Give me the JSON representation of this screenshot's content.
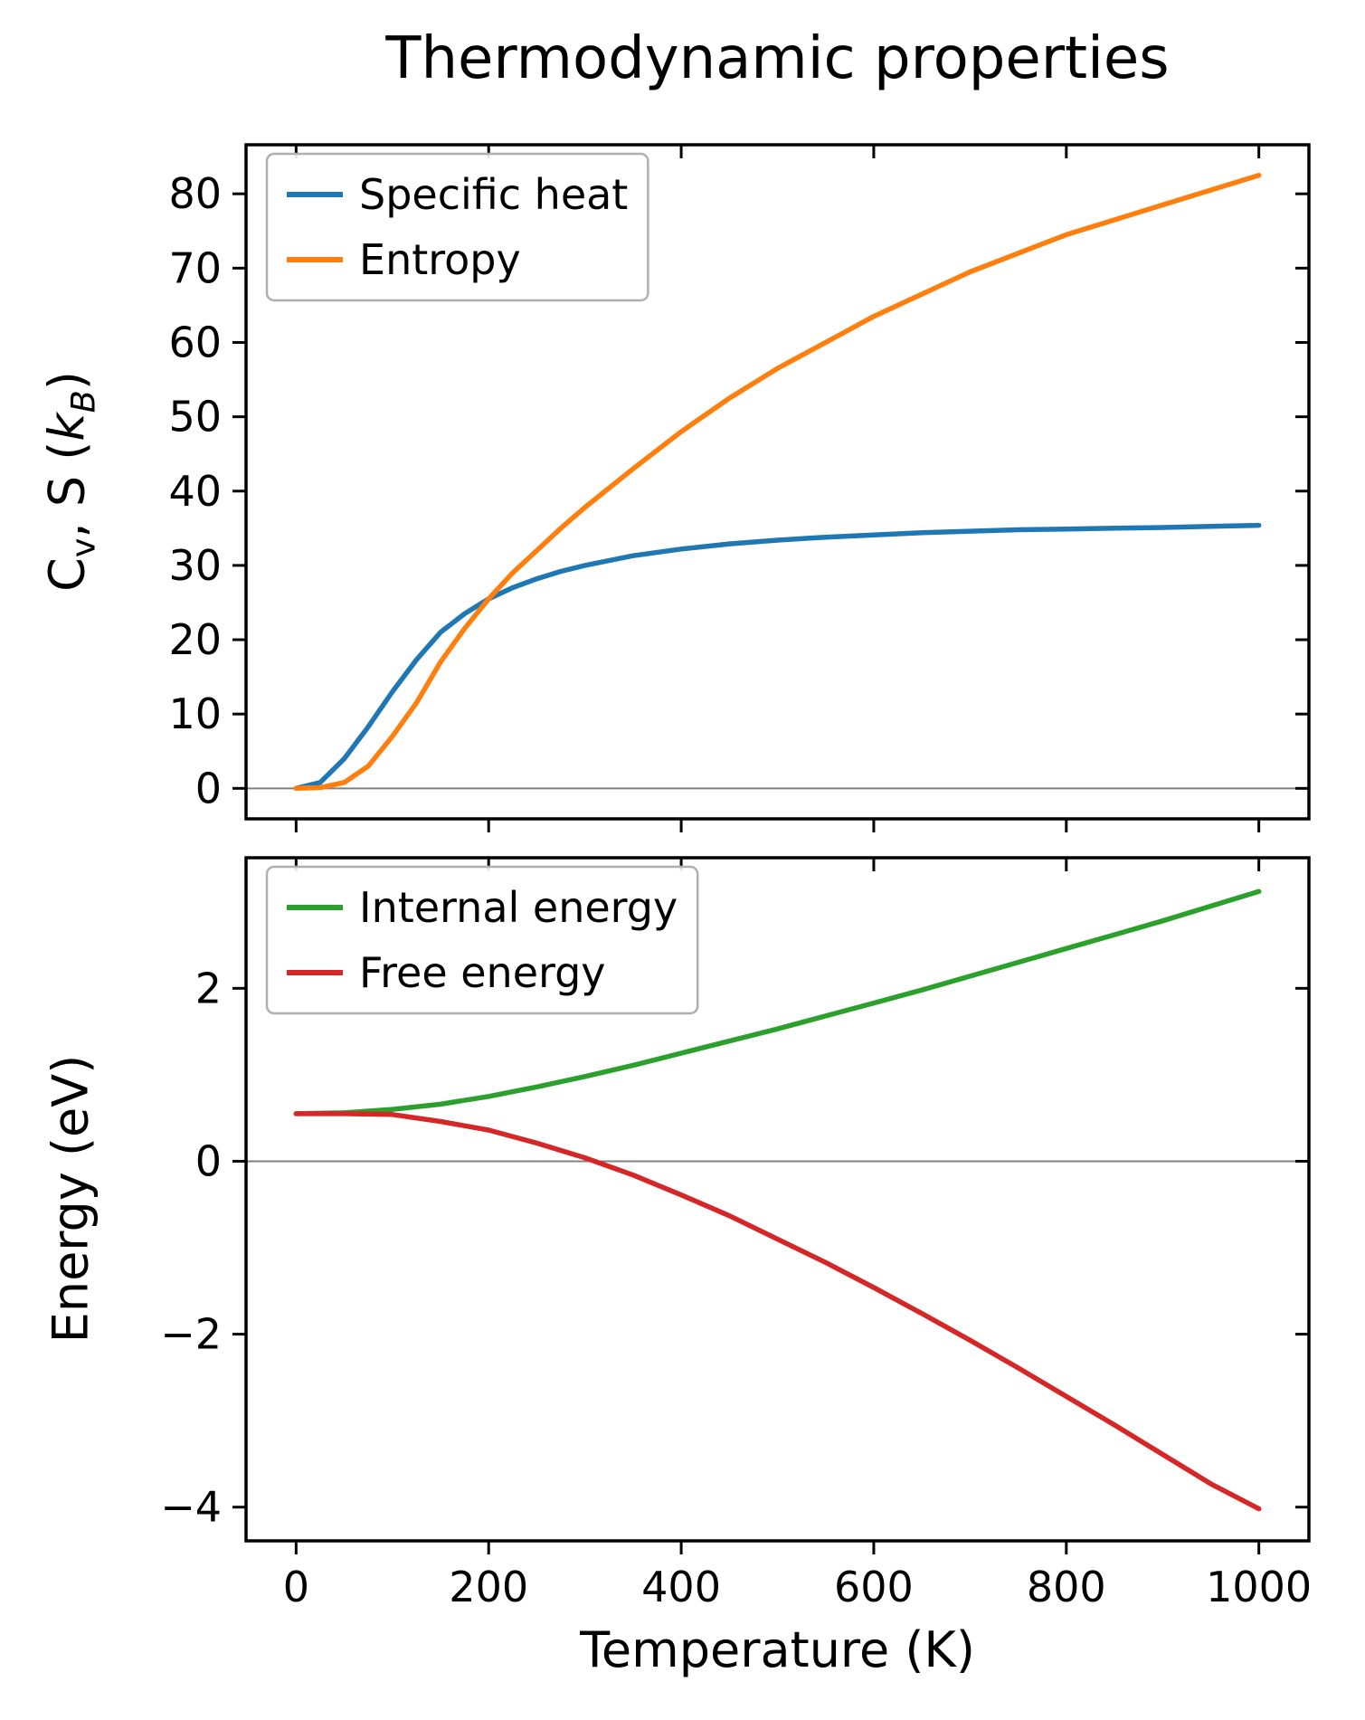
{
  "figure": {
    "title": "Thermodynamic properties",
    "background": "#ffffff",
    "text_color": "#000000",
    "spine_color": "#000000"
  },
  "chart_data": [
    {
      "type": "line",
      "title": "Thermodynamic properties",
      "xlabel": "",
      "ylabel": "Cv, S (kB)",
      "ylabel_parts": {
        "C": "C",
        "v": "v",
        "mid": ", S (",
        "k": "k",
        "B": "B",
        "close": ")"
      },
      "xlim": [
        -52,
        1052
      ],
      "ylim": [
        -4.1,
        86.6
      ],
      "xticks": [
        0,
        200,
        400,
        600,
        800,
        1000
      ],
      "yticks": [
        0,
        10,
        20,
        30,
        40,
        50,
        60,
        70,
        80
      ],
      "ytick_labels": [
        "0",
        "10",
        "20",
        "30",
        "40",
        "50",
        "60",
        "70",
        "80"
      ],
      "grid": false,
      "zero_line": true,
      "zero_line_color": "#808080",
      "legend": {
        "position": "upper left",
        "entries": [
          "Specific heat",
          "Entropy"
        ]
      },
      "series": [
        {
          "name": "Specific heat",
          "color": "#1f77b4",
          "x": [
            0,
            25,
            50,
            75,
            100,
            125,
            150,
            175,
            200,
            225,
            250,
            275,
            300,
            350,
            400,
            450,
            500,
            550,
            600,
            650,
            700,
            750,
            800,
            850,
            900,
            950,
            1000
          ],
          "y": [
            0,
            0.8,
            4.0,
            8.3,
            13.0,
            17.3,
            21.0,
            23.5,
            25.5,
            27.0,
            28.2,
            29.2,
            30.0,
            31.3,
            32.2,
            32.9,
            33.4,
            33.8,
            34.1,
            34.4,
            34.6,
            34.8,
            34.9,
            35.0,
            35.1,
            35.25,
            35.4
          ]
        },
        {
          "name": "Entropy",
          "color": "#ff7f0e",
          "x": [
            0,
            25,
            50,
            75,
            100,
            125,
            150,
            175,
            200,
            225,
            250,
            275,
            300,
            350,
            400,
            450,
            500,
            550,
            600,
            650,
            700,
            750,
            800,
            850,
            900,
            950,
            1000
          ],
          "y": [
            0,
            0.1,
            0.8,
            3.0,
            7.0,
            11.5,
            17.0,
            21.5,
            25.5,
            29.0,
            32.0,
            35.0,
            37.8,
            43.0,
            48.0,
            52.5,
            56.5,
            60.0,
            63.5,
            66.5,
            69.5,
            72.0,
            74.5,
            76.5,
            78.5,
            80.5,
            82.5
          ]
        }
      ]
    },
    {
      "type": "line",
      "title": "",
      "xlabel": "Temperature (K)",
      "ylabel": "Energy (eV)",
      "xlim": [
        -52,
        1052
      ],
      "ylim": [
        -4.39,
        3.51
      ],
      "xticks": [
        0,
        200,
        400,
        600,
        800,
        1000
      ],
      "xtick_labels": [
        "0",
        "200",
        "400",
        "600",
        "800",
        "1000"
      ],
      "yticks": [
        -4,
        -2,
        0,
        2
      ],
      "ytick_labels": [
        "−4",
        "−2",
        "0",
        "2"
      ],
      "grid": false,
      "zero_line": true,
      "zero_line_color": "#808080",
      "legend": {
        "position": "upper left",
        "entries": [
          "Internal energy",
          "Free energy"
        ]
      },
      "series": [
        {
          "name": "Internal energy",
          "color": "#2ca02c",
          "x": [
            0,
            50,
            100,
            150,
            200,
            250,
            300,
            350,
            400,
            450,
            500,
            550,
            600,
            650,
            700,
            750,
            800,
            850,
            900,
            950,
            1000
          ],
          "y": [
            0.55,
            0.56,
            0.6,
            0.66,
            0.75,
            0.86,
            0.98,
            1.11,
            1.25,
            1.39,
            1.53,
            1.68,
            1.83,
            1.98,
            2.14,
            2.3,
            2.46,
            2.62,
            2.78,
            2.95,
            3.12
          ]
        },
        {
          "name": "Free energy",
          "color": "#d62728",
          "x": [
            0,
            50,
            100,
            150,
            200,
            250,
            300,
            350,
            400,
            450,
            500,
            550,
            600,
            650,
            700,
            750,
            800,
            850,
            900,
            950,
            1000
          ],
          "y": [
            0.55,
            0.55,
            0.54,
            0.46,
            0.36,
            0.21,
            0.04,
            -0.16,
            -0.39,
            -0.63,
            -0.9,
            -1.17,
            -1.46,
            -1.76,
            -2.07,
            -2.39,
            -2.72,
            -3.05,
            -3.39,
            -3.73,
            -4.02
          ]
        }
      ]
    }
  ]
}
